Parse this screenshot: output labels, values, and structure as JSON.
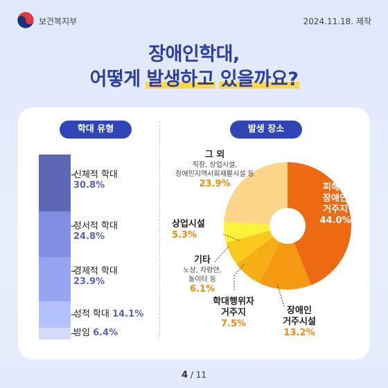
{
  "header": {
    "org_name": "보건복지부",
    "made_date": "2024.11.18. 제작"
  },
  "title": {
    "line1": "장애인학대,",
    "line2_part1": "어떻게 ",
    "line2_hl1": "발생하고",
    "line2_part2": " ",
    "line2_hl2": "있을까요?"
  },
  "colors": {
    "accent": "#2f45b8",
    "highlight": "#ffd84a",
    "pct_orange": "#f08a12"
  },
  "chart_data": [
    {
      "type": "bar",
      "stacked": true,
      "title": "학대 유형",
      "categories": [
        "신체적 학대",
        "정서적 학대",
        "경제적 학대",
        "성적 학대",
        "방임"
      ],
      "values": [
        30.8,
        24.8,
        23.9,
        14.1,
        6.4
      ],
      "labels": [
        "30.8%",
        "24.8%",
        "23.9%",
        "14.1%",
        "6.4%"
      ],
      "colors": [
        "#5d67b3",
        "#7f8ee0",
        "#95a5f0",
        "#b4c2fb",
        "#d3dcfd"
      ]
    },
    {
      "type": "pie",
      "donut": true,
      "title": "발생 장소",
      "categories": [
        "피해자 장애인 거주지",
        "장애인 거주시설",
        "학대행위자 거주지",
        "기타",
        "상업시설",
        "그 외"
      ],
      "values": [
        44.0,
        13.2,
        7.5,
        6.1,
        5.3,
        23.9
      ],
      "labels": [
        "44.0%",
        "13.2%",
        "7.5%",
        "6.1%",
        "5.3%",
        "23.9%"
      ],
      "sublabels": [
        "",
        "",
        "",
        "노상, 차량안, 놀이터 등",
        "",
        "직장, 상업시설, 장애인지역사회재활시설 등"
      ],
      "colors": [
        "#ee6a12",
        "#f59a12",
        "#f7ad15",
        "#fbc81c",
        "#fbf33a",
        "#fdd58a"
      ]
    }
  ],
  "pie_labels": {
    "geo_line1": "피해자",
    "geo_line2": "장애인",
    "geo_line3": "거주지",
    "geo_pct": "44.0%",
    "fac_line1": "장애인",
    "fac_line2": "거주시설",
    "fac_pct": "13.2%",
    "abuser_line1": "학대행위자",
    "abuser_line2": "거주지",
    "abuser_pct": "7.5%",
    "etc_name": "기타",
    "etc_sub1": "노상, 차량안,",
    "etc_sub2": "놀이터 등",
    "etc_pct": "6.1%",
    "com_name": "상업시설",
    "com_pct": "5.3%",
    "other_name": "그 외",
    "other_sub1": "직장, 상업시설,",
    "other_sub2": "장애인지역사회재활시설 등",
    "other_pct": "23.9%"
  },
  "pagination": {
    "current": "4",
    "separator": " / ",
    "total": "11"
  }
}
